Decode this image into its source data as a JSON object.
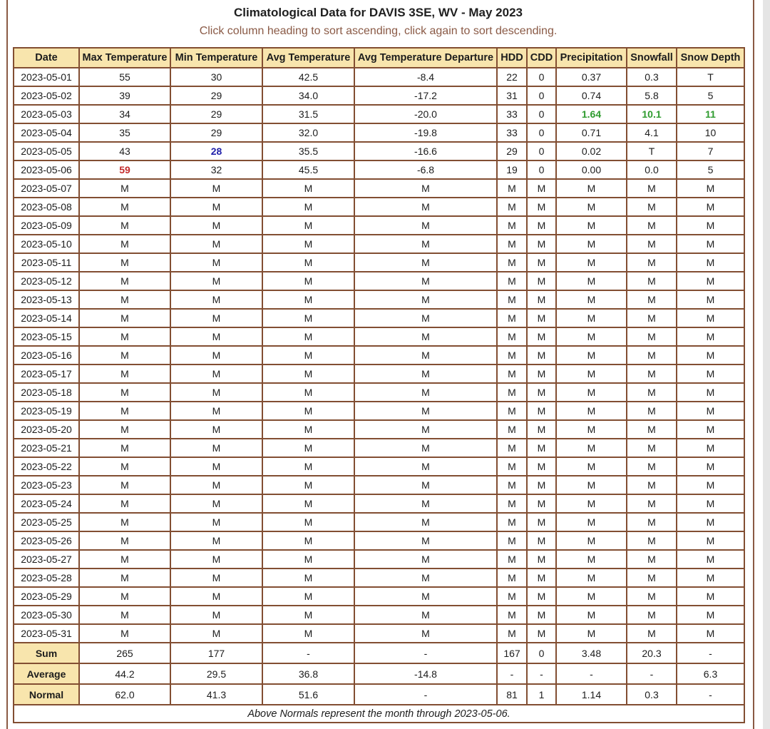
{
  "page": {
    "title": "Climatological Data for DAVIS 3SE, WV - May 2023",
    "subtitle": "Click column heading to sort ascending, click again to sort descending.",
    "footer_note": "Above Normals represent the month through 2023-05-06."
  },
  "colors": {
    "table_border": "#824e32",
    "header_bg": "#f8e5ad",
    "subtitle_text": "#8a5a46",
    "record_high_red": "#c42b2b",
    "record_low_blue": "#2222aa",
    "above_normal_green": "#2e9b2e"
  },
  "table": {
    "columns": [
      "Date",
      "Max Temperature",
      "Min Temperature",
      "Avg Temperature",
      "Avg Temperature Departure",
      "HDD",
      "CDD",
      "Precipitation",
      "Snowfall",
      "Snow Depth"
    ],
    "rows": [
      [
        "2023-05-01",
        "55",
        "30",
        "42.5",
        "-8.4",
        "22",
        "0",
        "0.37",
        "0.3",
        "T"
      ],
      [
        "2023-05-02",
        "39",
        "29",
        "34.0",
        "-17.2",
        "31",
        "0",
        "0.74",
        "5.8",
        "5"
      ],
      [
        "2023-05-03",
        "34",
        "29",
        "31.5",
        "-20.0",
        "33",
        "0",
        "1.64",
        "10.1",
        "11"
      ],
      [
        "2023-05-04",
        "35",
        "29",
        "32.0",
        "-19.8",
        "33",
        "0",
        "0.71",
        "4.1",
        "10"
      ],
      [
        "2023-05-05",
        "43",
        "28",
        "35.5",
        "-16.6",
        "29",
        "0",
        "0.02",
        "T",
        "7"
      ],
      [
        "2023-05-06",
        "59",
        "32",
        "45.5",
        "-6.8",
        "19",
        "0",
        "0.00",
        "0.0",
        "5"
      ],
      [
        "2023-05-07",
        "M",
        "M",
        "M",
        "M",
        "M",
        "M",
        "M",
        "M",
        "M"
      ],
      [
        "2023-05-08",
        "M",
        "M",
        "M",
        "M",
        "M",
        "M",
        "M",
        "M",
        "M"
      ],
      [
        "2023-05-09",
        "M",
        "M",
        "M",
        "M",
        "M",
        "M",
        "M",
        "M",
        "M"
      ],
      [
        "2023-05-10",
        "M",
        "M",
        "M",
        "M",
        "M",
        "M",
        "M",
        "M",
        "M"
      ],
      [
        "2023-05-11",
        "M",
        "M",
        "M",
        "M",
        "M",
        "M",
        "M",
        "M",
        "M"
      ],
      [
        "2023-05-12",
        "M",
        "M",
        "M",
        "M",
        "M",
        "M",
        "M",
        "M",
        "M"
      ],
      [
        "2023-05-13",
        "M",
        "M",
        "M",
        "M",
        "M",
        "M",
        "M",
        "M",
        "M"
      ],
      [
        "2023-05-14",
        "M",
        "M",
        "M",
        "M",
        "M",
        "M",
        "M",
        "M",
        "M"
      ],
      [
        "2023-05-15",
        "M",
        "M",
        "M",
        "M",
        "M",
        "M",
        "M",
        "M",
        "M"
      ],
      [
        "2023-05-16",
        "M",
        "M",
        "M",
        "M",
        "M",
        "M",
        "M",
        "M",
        "M"
      ],
      [
        "2023-05-17",
        "M",
        "M",
        "M",
        "M",
        "M",
        "M",
        "M",
        "M",
        "M"
      ],
      [
        "2023-05-18",
        "M",
        "M",
        "M",
        "M",
        "M",
        "M",
        "M",
        "M",
        "M"
      ],
      [
        "2023-05-19",
        "M",
        "M",
        "M",
        "M",
        "M",
        "M",
        "M",
        "M",
        "M"
      ],
      [
        "2023-05-20",
        "M",
        "M",
        "M",
        "M",
        "M",
        "M",
        "M",
        "M",
        "M"
      ],
      [
        "2023-05-21",
        "M",
        "M",
        "M",
        "M",
        "M",
        "M",
        "M",
        "M",
        "M"
      ],
      [
        "2023-05-22",
        "M",
        "M",
        "M",
        "M",
        "M",
        "M",
        "M",
        "M",
        "M"
      ],
      [
        "2023-05-23",
        "M",
        "M",
        "M",
        "M",
        "M",
        "M",
        "M",
        "M",
        "M"
      ],
      [
        "2023-05-24",
        "M",
        "M",
        "M",
        "M",
        "M",
        "M",
        "M",
        "M",
        "M"
      ],
      [
        "2023-05-25",
        "M",
        "M",
        "M",
        "M",
        "M",
        "M",
        "M",
        "M",
        "M"
      ],
      [
        "2023-05-26",
        "M",
        "M",
        "M",
        "M",
        "M",
        "M",
        "M",
        "M",
        "M"
      ],
      [
        "2023-05-27",
        "M",
        "M",
        "M",
        "M",
        "M",
        "M",
        "M",
        "M",
        "M"
      ],
      [
        "2023-05-28",
        "M",
        "M",
        "M",
        "M",
        "M",
        "M",
        "M",
        "M",
        "M"
      ],
      [
        "2023-05-29",
        "M",
        "M",
        "M",
        "M",
        "M",
        "M",
        "M",
        "M",
        "M"
      ],
      [
        "2023-05-30",
        "M",
        "M",
        "M",
        "M",
        "M",
        "M",
        "M",
        "M",
        "M"
      ],
      [
        "2023-05-31",
        "M",
        "M",
        "M",
        "M",
        "M",
        "M",
        "M",
        "M",
        "M"
      ]
    ],
    "highlights": [
      {
        "row": 2,
        "col": 7,
        "color_key": "above_normal_green"
      },
      {
        "row": 2,
        "col": 8,
        "color_key": "above_normal_green"
      },
      {
        "row": 2,
        "col": 9,
        "color_key": "above_normal_green"
      },
      {
        "row": 4,
        "col": 2,
        "color_key": "record_low_blue"
      },
      {
        "row": 5,
        "col": 1,
        "color_key": "record_high_red"
      }
    ],
    "summary_rows": [
      [
        "Sum",
        "265",
        "177",
        "-",
        "-",
        "167",
        "0",
        "3.48",
        "20.3",
        "-"
      ],
      [
        "Average",
        "44.2",
        "29.5",
        "36.8",
        "-14.8",
        "-",
        "-",
        "-",
        "-",
        "6.3"
      ],
      [
        "Normal",
        "62.0",
        "41.3",
        "51.6",
        "-",
        "81",
        "1",
        "1.14",
        "0.3",
        "-"
      ]
    ]
  }
}
